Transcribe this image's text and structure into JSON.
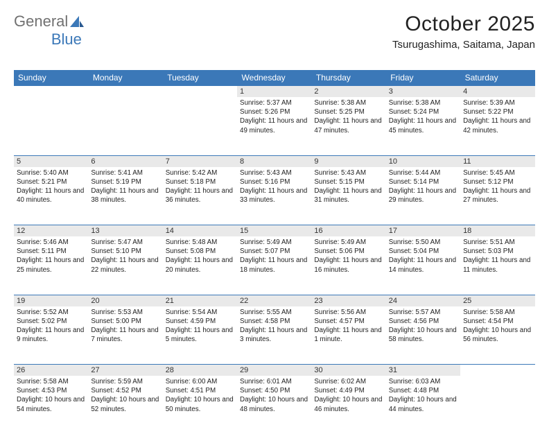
{
  "brand": {
    "part1": "General",
    "part2": "Blue"
  },
  "title": {
    "month": "October 2025",
    "location": "Tsurugashima, Saitama, Japan"
  },
  "colors": {
    "header_bg": "#3b78b8",
    "header_text": "#ffffff",
    "daynum_bg": "#e9e9e9",
    "border": "#3b78b8",
    "body_text": "#222222",
    "logo_gray": "#717171",
    "logo_blue": "#3b78b8"
  },
  "days": [
    "Sunday",
    "Monday",
    "Tuesday",
    "Wednesday",
    "Thursday",
    "Friday",
    "Saturday"
  ],
  "weeks": [
    [
      {
        "n": "",
        "sr": "",
        "ss": "",
        "dl": ""
      },
      {
        "n": "",
        "sr": "",
        "ss": "",
        "dl": ""
      },
      {
        "n": "",
        "sr": "",
        "ss": "",
        "dl": ""
      },
      {
        "n": "1",
        "sr": "Sunrise: 5:37 AM",
        "ss": "Sunset: 5:26 PM",
        "dl": "Daylight: 11 hours and 49 minutes."
      },
      {
        "n": "2",
        "sr": "Sunrise: 5:38 AM",
        "ss": "Sunset: 5:25 PM",
        "dl": "Daylight: 11 hours and 47 minutes."
      },
      {
        "n": "3",
        "sr": "Sunrise: 5:38 AM",
        "ss": "Sunset: 5:24 PM",
        "dl": "Daylight: 11 hours and 45 minutes."
      },
      {
        "n": "4",
        "sr": "Sunrise: 5:39 AM",
        "ss": "Sunset: 5:22 PM",
        "dl": "Daylight: 11 hours and 42 minutes."
      }
    ],
    [
      {
        "n": "5",
        "sr": "Sunrise: 5:40 AM",
        "ss": "Sunset: 5:21 PM",
        "dl": "Daylight: 11 hours and 40 minutes."
      },
      {
        "n": "6",
        "sr": "Sunrise: 5:41 AM",
        "ss": "Sunset: 5:19 PM",
        "dl": "Daylight: 11 hours and 38 minutes."
      },
      {
        "n": "7",
        "sr": "Sunrise: 5:42 AM",
        "ss": "Sunset: 5:18 PM",
        "dl": "Daylight: 11 hours and 36 minutes."
      },
      {
        "n": "8",
        "sr": "Sunrise: 5:43 AM",
        "ss": "Sunset: 5:16 PM",
        "dl": "Daylight: 11 hours and 33 minutes."
      },
      {
        "n": "9",
        "sr": "Sunrise: 5:43 AM",
        "ss": "Sunset: 5:15 PM",
        "dl": "Daylight: 11 hours and 31 minutes."
      },
      {
        "n": "10",
        "sr": "Sunrise: 5:44 AM",
        "ss": "Sunset: 5:14 PM",
        "dl": "Daylight: 11 hours and 29 minutes."
      },
      {
        "n": "11",
        "sr": "Sunrise: 5:45 AM",
        "ss": "Sunset: 5:12 PM",
        "dl": "Daylight: 11 hours and 27 minutes."
      }
    ],
    [
      {
        "n": "12",
        "sr": "Sunrise: 5:46 AM",
        "ss": "Sunset: 5:11 PM",
        "dl": "Daylight: 11 hours and 25 minutes."
      },
      {
        "n": "13",
        "sr": "Sunrise: 5:47 AM",
        "ss": "Sunset: 5:10 PM",
        "dl": "Daylight: 11 hours and 22 minutes."
      },
      {
        "n": "14",
        "sr": "Sunrise: 5:48 AM",
        "ss": "Sunset: 5:08 PM",
        "dl": "Daylight: 11 hours and 20 minutes."
      },
      {
        "n": "15",
        "sr": "Sunrise: 5:49 AM",
        "ss": "Sunset: 5:07 PM",
        "dl": "Daylight: 11 hours and 18 minutes."
      },
      {
        "n": "16",
        "sr": "Sunrise: 5:49 AM",
        "ss": "Sunset: 5:06 PM",
        "dl": "Daylight: 11 hours and 16 minutes."
      },
      {
        "n": "17",
        "sr": "Sunrise: 5:50 AM",
        "ss": "Sunset: 5:04 PM",
        "dl": "Daylight: 11 hours and 14 minutes."
      },
      {
        "n": "18",
        "sr": "Sunrise: 5:51 AM",
        "ss": "Sunset: 5:03 PM",
        "dl": "Daylight: 11 hours and 11 minutes."
      }
    ],
    [
      {
        "n": "19",
        "sr": "Sunrise: 5:52 AM",
        "ss": "Sunset: 5:02 PM",
        "dl": "Daylight: 11 hours and 9 minutes."
      },
      {
        "n": "20",
        "sr": "Sunrise: 5:53 AM",
        "ss": "Sunset: 5:00 PM",
        "dl": "Daylight: 11 hours and 7 minutes."
      },
      {
        "n": "21",
        "sr": "Sunrise: 5:54 AM",
        "ss": "Sunset: 4:59 PM",
        "dl": "Daylight: 11 hours and 5 minutes."
      },
      {
        "n": "22",
        "sr": "Sunrise: 5:55 AM",
        "ss": "Sunset: 4:58 PM",
        "dl": "Daylight: 11 hours and 3 minutes."
      },
      {
        "n": "23",
        "sr": "Sunrise: 5:56 AM",
        "ss": "Sunset: 4:57 PM",
        "dl": "Daylight: 11 hours and 1 minute."
      },
      {
        "n": "24",
        "sr": "Sunrise: 5:57 AM",
        "ss": "Sunset: 4:56 PM",
        "dl": "Daylight: 10 hours and 58 minutes."
      },
      {
        "n": "25",
        "sr": "Sunrise: 5:58 AM",
        "ss": "Sunset: 4:54 PM",
        "dl": "Daylight: 10 hours and 56 minutes."
      }
    ],
    [
      {
        "n": "26",
        "sr": "Sunrise: 5:58 AM",
        "ss": "Sunset: 4:53 PM",
        "dl": "Daylight: 10 hours and 54 minutes."
      },
      {
        "n": "27",
        "sr": "Sunrise: 5:59 AM",
        "ss": "Sunset: 4:52 PM",
        "dl": "Daylight: 10 hours and 52 minutes."
      },
      {
        "n": "28",
        "sr": "Sunrise: 6:00 AM",
        "ss": "Sunset: 4:51 PM",
        "dl": "Daylight: 10 hours and 50 minutes."
      },
      {
        "n": "29",
        "sr": "Sunrise: 6:01 AM",
        "ss": "Sunset: 4:50 PM",
        "dl": "Daylight: 10 hours and 48 minutes."
      },
      {
        "n": "30",
        "sr": "Sunrise: 6:02 AM",
        "ss": "Sunset: 4:49 PM",
        "dl": "Daylight: 10 hours and 46 minutes."
      },
      {
        "n": "31",
        "sr": "Sunrise: 6:03 AM",
        "ss": "Sunset: 4:48 PM",
        "dl": "Daylight: 10 hours and 44 minutes."
      },
      {
        "n": "",
        "sr": "",
        "ss": "",
        "dl": ""
      }
    ]
  ]
}
